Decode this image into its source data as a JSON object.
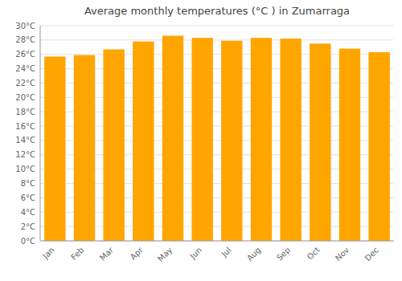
{
  "chart_data": {
    "type": "bar",
    "title": "Average monthly temperatures (°C ) in Zumarraga",
    "categories": [
      "Jan",
      "Feb",
      "Mar",
      "Apr",
      "May",
      "Jun",
      "Jul",
      "Aug",
      "Sep",
      "Oct",
      "Nov",
      "Dec"
    ],
    "values": [
      25.7,
      25.9,
      26.7,
      27.8,
      28.6,
      28.3,
      27.9,
      28.3,
      28.2,
      27.5,
      26.8,
      26.3
    ],
    "color": "#FFA500",
    "ylim": [
      0,
      30
    ],
    "yticks": [
      {
        "value": 0,
        "label": "0°C"
      },
      {
        "value": 2,
        "label": "2°C"
      },
      {
        "value": 4,
        "label": "4°C"
      },
      {
        "value": 6,
        "label": "6°C"
      },
      {
        "value": 8,
        "label": "8°C"
      },
      {
        "value": 10,
        "label": "10°C"
      },
      {
        "value": 12,
        "label": "12°C"
      },
      {
        "value": 14,
        "label": "14°C"
      },
      {
        "value": 16,
        "label": "16°C"
      },
      {
        "value": 18,
        "label": "18°C"
      },
      {
        "value": 20,
        "label": "20°C"
      },
      {
        "value": 22,
        "label": "22°C"
      },
      {
        "value": 24,
        "label": "24°C"
      },
      {
        "value": 26,
        "label": "26°C"
      },
      {
        "value": 28,
        "label": "28°C"
      },
      {
        "value": 30,
        "label": "30°C"
      }
    ],
    "grid": true
  }
}
